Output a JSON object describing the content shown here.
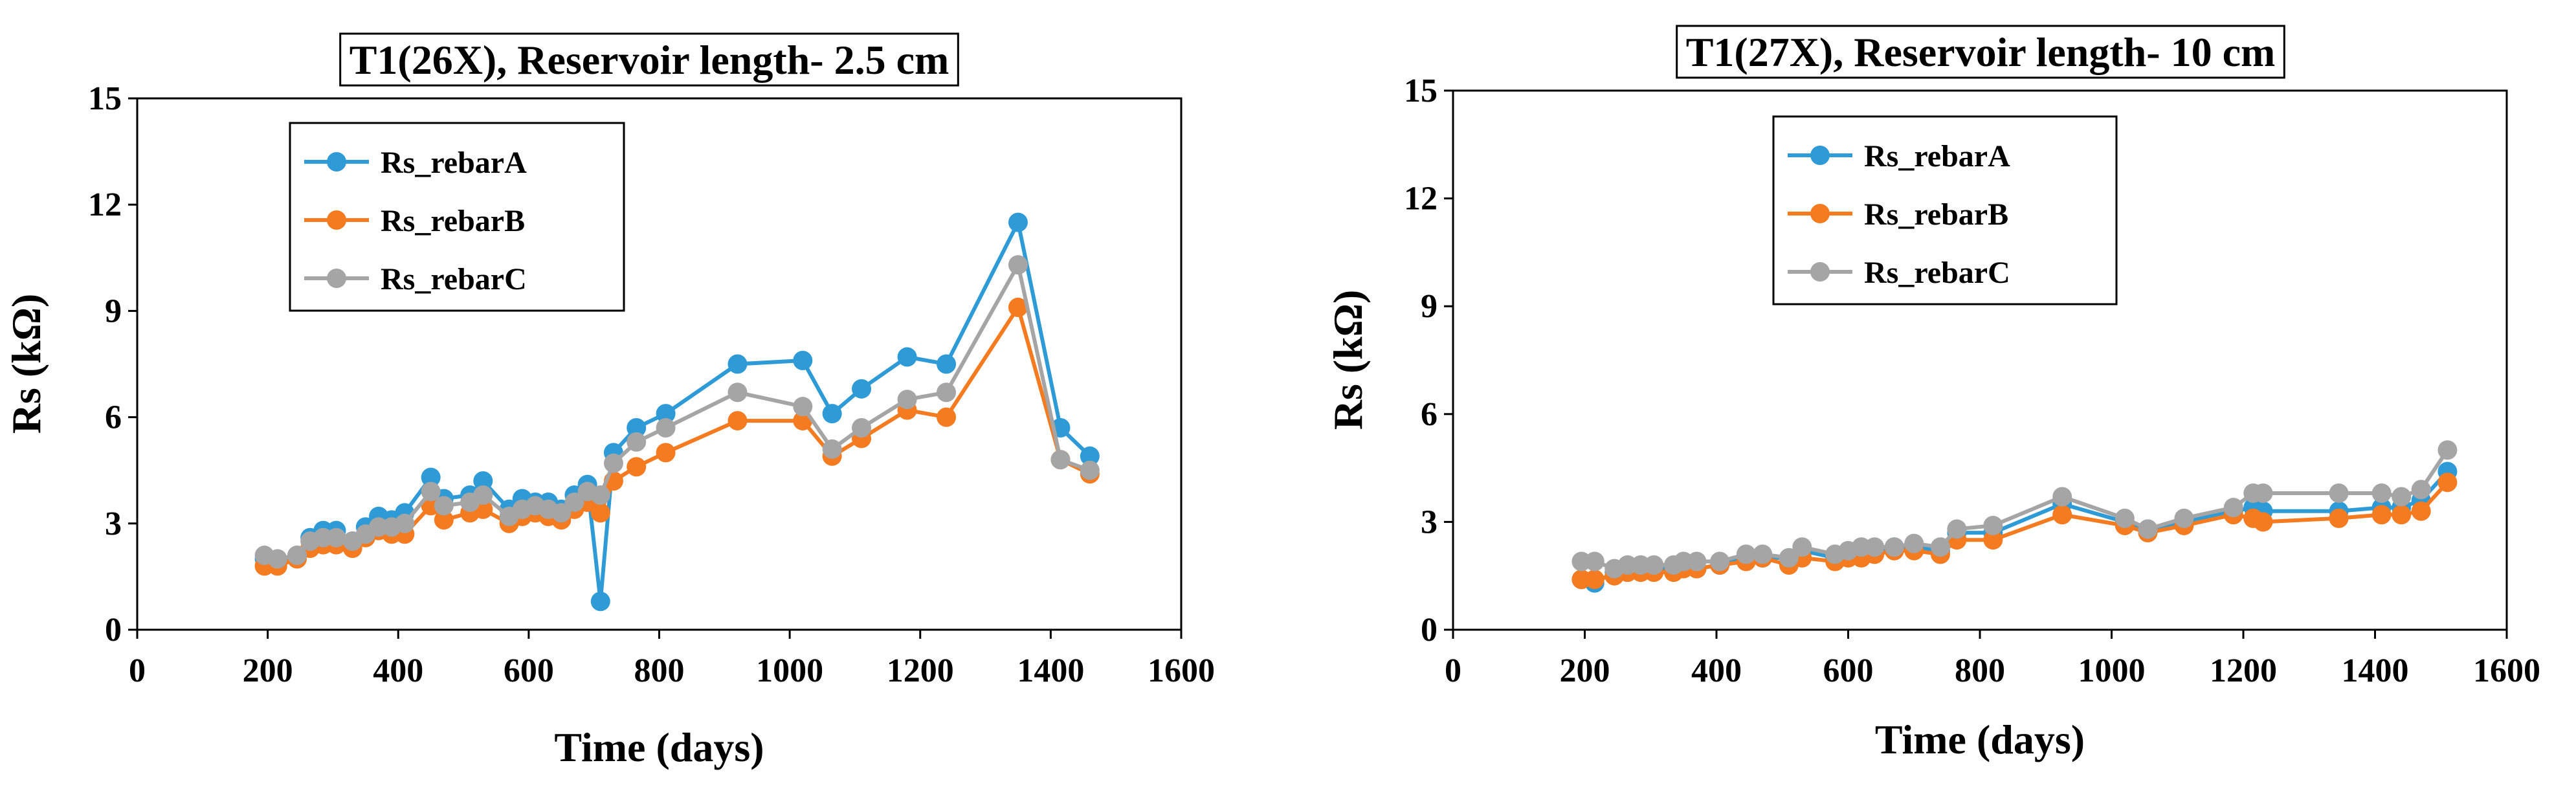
{
  "chart_data": [
    {
      "type": "line",
      "title": "T1(26X), Reservoir length- 2.5 cm",
      "xlabel": "Time (days)",
      "ylabel": "Rs (kΩ)",
      "xlim": [
        0,
        1600
      ],
      "ylim": [
        0,
        15
      ],
      "xticks": [
        "0",
        "200",
        "400",
        "600",
        "800",
        "1000",
        "1200",
        "1400",
        "1600"
      ],
      "yticks": [
        "0",
        "3",
        "6",
        "9",
        "12",
        "15"
      ],
      "legend_position": "top-left",
      "series": [
        {
          "name": "Rs_rebarA",
          "color": "#2E9BD6",
          "x": [
            195,
            215,
            245,
            265,
            285,
            305,
            330,
            350,
            370,
            390,
            410,
            450,
            470,
            510,
            530,
            570,
            590,
            610,
            630,
            650,
            670,
            690,
            710,
            730,
            765,
            810,
            920,
            1020,
            1065,
            1110,
            1180,
            1240,
            1350,
            1415,
            1460
          ],
          "y": [
            2.0,
            1.9,
            2.1,
            2.6,
            2.8,
            2.8,
            2.5,
            2.9,
            3.2,
            3.1,
            3.3,
            4.3,
            3.7,
            3.8,
            4.2,
            3.4,
            3.7,
            3.6,
            3.6,
            3.4,
            3.8,
            4.1,
            0.8,
            5.0,
            5.7,
            6.1,
            7.5,
            7.6,
            6.1,
            6.8,
            7.7,
            7.5,
            11.5,
            5.7,
            4.9
          ]
        },
        {
          "name": "Rs_rebarB",
          "color": "#F47B20",
          "x": [
            195,
            215,
            245,
            265,
            285,
            305,
            330,
            350,
            370,
            390,
            410,
            450,
            470,
            510,
            530,
            570,
            590,
            610,
            630,
            650,
            670,
            690,
            710,
            730,
            765,
            810,
            920,
            1020,
            1065,
            1110,
            1180,
            1240,
            1350,
            1415,
            1460
          ],
          "y": [
            1.8,
            1.8,
            2.0,
            2.3,
            2.4,
            2.4,
            2.3,
            2.6,
            2.8,
            2.7,
            2.7,
            3.5,
            3.1,
            3.3,
            3.4,
            3.0,
            3.2,
            3.3,
            3.2,
            3.1,
            3.4,
            3.6,
            3.3,
            4.2,
            4.6,
            5.0,
            5.9,
            5.9,
            4.9,
            5.4,
            6.2,
            6.0,
            9.1,
            4.8,
            4.4
          ]
        },
        {
          "name": "Rs_rebarC",
          "color": "#A5A5A5",
          "x": [
            195,
            215,
            245,
            265,
            285,
            305,
            330,
            350,
            370,
            390,
            410,
            450,
            470,
            510,
            530,
            570,
            590,
            610,
            630,
            650,
            670,
            690,
            710,
            730,
            765,
            810,
            920,
            1020,
            1065,
            1110,
            1180,
            1240,
            1350,
            1415,
            1460
          ],
          "y": [
            2.1,
            2.0,
            2.1,
            2.5,
            2.6,
            2.6,
            2.5,
            2.7,
            2.9,
            2.9,
            3.0,
            3.9,
            3.5,
            3.6,
            3.8,
            3.2,
            3.4,
            3.5,
            3.4,
            3.3,
            3.6,
            3.9,
            3.8,
            4.7,
            5.3,
            5.7,
            6.7,
            6.3,
            5.1,
            5.7,
            6.5,
            6.7,
            10.3,
            4.8,
            4.5
          ]
        }
      ]
    },
    {
      "type": "line",
      "title": "T1(27X), Reservoir length- 10 cm",
      "xlabel": "Time (days)",
      "ylabel": "Rs (kΩ)",
      "xlim": [
        0,
        1600
      ],
      "ylim": [
        0,
        15
      ],
      "xticks": [
        "0",
        "200",
        "400",
        "600",
        "800",
        "1000",
        "1200",
        "1400",
        "1600"
      ],
      "yticks": [
        "0",
        "3",
        "6",
        "9",
        "12",
        "15"
      ],
      "legend_position": "top-left",
      "series": [
        {
          "name": "Rs_rebarA",
          "color": "#2E9BD6",
          "x": [
            195,
            215,
            245,
            265,
            285,
            305,
            335,
            350,
            370,
            405,
            445,
            470,
            510,
            530,
            580,
            600,
            620,
            640,
            670,
            700,
            740,
            765,
            820,
            925,
            1020,
            1055,
            1110,
            1185,
            1215,
            1230,
            1345,
            1410,
            1440,
            1470,
            1510
          ],
          "y": [
            1.4,
            1.3,
            1.6,
            1.6,
            1.7,
            1.7,
            1.7,
            1.8,
            1.7,
            1.8,
            2.0,
            2.0,
            2.0,
            2.2,
            2.0,
            2.1,
            2.1,
            2.2,
            2.3,
            2.3,
            2.2,
            2.7,
            2.7,
            3.5,
            3.0,
            2.8,
            3.0,
            3.3,
            3.4,
            3.3,
            3.3,
            3.4,
            3.4,
            3.6,
            4.4
          ]
        },
        {
          "name": "Rs_rebarB",
          "color": "#F47B20",
          "x": [
            195,
            215,
            245,
            265,
            285,
            305,
            335,
            350,
            370,
            405,
            445,
            470,
            510,
            530,
            580,
            600,
            620,
            640,
            670,
            700,
            740,
            765,
            820,
            925,
            1020,
            1055,
            1110,
            1185,
            1215,
            1230,
            1345,
            1410,
            1440,
            1470,
            1510
          ],
          "y": [
            1.4,
            1.4,
            1.5,
            1.6,
            1.6,
            1.6,
            1.6,
            1.7,
            1.7,
            1.8,
            1.9,
            2.0,
            1.8,
            2.0,
            1.9,
            2.0,
            2.0,
            2.1,
            2.2,
            2.2,
            2.1,
            2.5,
            2.5,
            3.2,
            2.9,
            2.7,
            2.9,
            3.2,
            3.1,
            3.0,
            3.1,
            3.2,
            3.2,
            3.3,
            4.1
          ]
        },
        {
          "name": "Rs_rebarC",
          "color": "#A5A5A5",
          "x": [
            195,
            215,
            245,
            265,
            285,
            305,
            335,
            350,
            370,
            405,
            445,
            470,
            510,
            530,
            580,
            600,
            620,
            640,
            670,
            700,
            740,
            765,
            820,
            925,
            1020,
            1055,
            1110,
            1185,
            1215,
            1230,
            1345,
            1410,
            1440,
            1470,
            1510
          ],
          "y": [
            1.9,
            1.9,
            1.7,
            1.8,
            1.8,
            1.8,
            1.8,
            1.9,
            1.9,
            1.9,
            2.1,
            2.1,
            2.0,
            2.3,
            2.1,
            2.2,
            2.3,
            2.3,
            2.3,
            2.4,
            2.3,
            2.8,
            2.9,
            3.7,
            3.1,
            2.8,
            3.1,
            3.4,
            3.8,
            3.8,
            3.8,
            3.8,
            3.7,
            3.9,
            5.0
          ]
        }
      ]
    }
  ]
}
